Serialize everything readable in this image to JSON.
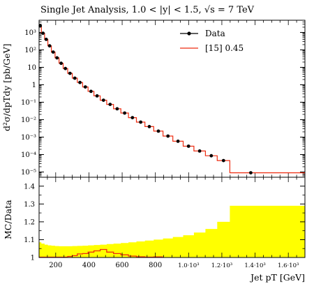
{
  "chart_data": [
    {
      "type": "line",
      "panel": "main",
      "title": "Single Jet Analysis, 1.0 < |y| < 1.5, √s = 7 TeV",
      "ylabel": "d²σ/dpTdy [pb/GeV]",
      "yscale": "log",
      "ylim": [
        5e-06,
        5000
      ],
      "xlim": [
        100,
        1700
      ],
      "ytick_labels": [
        "10³",
        "10²",
        "10",
        "1",
        "10⁻¹",
        "10⁻²",
        "10⁻³",
        "10⁻⁴",
        "10⁻⁵"
      ],
      "ytick_values": [
        1000,
        100,
        10,
        1,
        0.1,
        0.01,
        0.001,
        0.0001,
        1e-05
      ],
      "legend": {
        "placement": "top-right",
        "entries": [
          "Data",
          "[15] 0.45"
        ]
      },
      "bin_edges": [
        100,
        114,
        133,
        153,
        174,
        196,
        220,
        245,
        272,
        300,
        330,
        362,
        395,
        430,
        468,
        507,
        548,
        592,
        638,
        686,
        737,
        790,
        846,
        905,
        967,
        1032,
        1101,
        1172,
        1248,
        1500,
        1700
      ],
      "series": [
        {
          "name": "Data",
          "style": "points",
          "color": "#000000",
          "x": [
            107,
            123.5,
            143,
            163.5,
            185,
            208,
            232.5,
            258.5,
            286,
            315,
            346,
            378.5,
            412.5,
            449,
            487.5,
            527.5,
            570,
            615,
            662,
            711.5,
            763.5,
            818,
            875.5,
            936,
            999.5,
            1066.5,
            1136.5,
            1210,
            1374
          ],
          "y": [
            2400,
            900,
            400,
            170,
            75,
            35,
            17,
            8.5,
            4.5,
            2.4,
            1.35,
            0.75,
            0.42,
            0.23,
            0.13,
            0.075,
            0.042,
            0.024,
            0.013,
            0.0072,
            0.004,
            0.0022,
            0.00115,
            0.00058,
            0.0003,
            0.00016,
            8.5e-05,
            4.5e-05,
            9e-06
          ]
        },
        {
          "name": "[15] 0.45",
          "style": "histogram",
          "color": "#ee2c10",
          "y": [
            2400,
            900,
            400,
            170,
            75,
            35,
            17,
            8.5,
            4.5,
            2.4,
            1.35,
            0.75,
            0.42,
            0.23,
            0.13,
            0.075,
            0.042,
            0.024,
            0.013,
            0.0072,
            0.004,
            0.0022,
            0.00115,
            0.00058,
            0.0003,
            0.00016,
            8.5e-05,
            4.5e-05,
            9e-06,
            9e-06
          ]
        }
      ]
    },
    {
      "type": "area",
      "panel": "ratio",
      "ylabel": "MC/Data",
      "xlabel": "Jet pT [GeV]",
      "ylim": [
        1.0,
        1.45
      ],
      "xlim": [
        100,
        1700
      ],
      "ytick_labels": [
        "1",
        "1.1",
        "1.2",
        "1.3",
        "1.4"
      ],
      "ytick_values": [
        1.0,
        1.1,
        1.2,
        1.3,
        1.4
      ],
      "xtick_labels": [
        "200",
        "400",
        "600",
        "800",
        "1.0·10³",
        "1.2·10³",
        "1.4·10³",
        "1.6·10³"
      ],
      "xtick_values": [
        200,
        400,
        600,
        800,
        1000,
        1200,
        1400,
        1600
      ],
      "bin_edges": [
        100,
        114,
        133,
        153,
        174,
        196,
        220,
        245,
        272,
        300,
        330,
        362,
        395,
        430,
        468,
        507,
        548,
        592,
        638,
        686,
        737,
        790,
        846,
        905,
        967,
        1032,
        1101,
        1172,
        1248,
        1500,
        1700
      ],
      "series": [
        {
          "name": "band",
          "color": "#ffff00",
          "upper": [
            1.085,
            1.078,
            1.072,
            1.068,
            1.066,
            1.064,
            1.063,
            1.063,
            1.063,
            1.064,
            1.065,
            1.066,
            1.068,
            1.07,
            1.072,
            1.075,
            1.078,
            1.081,
            1.085,
            1.09,
            1.095,
            1.1,
            1.107,
            1.115,
            1.125,
            1.14,
            1.16,
            1.2,
            1.29,
            1.29
          ],
          "lower": [
            1.0,
            1.0,
            1.0,
            1.0,
            1.0,
            1.0,
            1.0,
            1.0,
            1.0,
            1.0,
            1.0,
            1.0,
            1.0,
            1.0,
            1.0,
            1.0,
            1.0,
            1.0,
            1.0,
            1.0,
            1.0,
            1.0,
            1.0,
            1.0,
            1.0,
            1.0,
            1.0,
            1.0,
            1.0,
            1.0
          ]
        },
        {
          "name": "[15] 0.45",
          "color": "#ee2c10",
          "x_range": [
            100,
            846
          ],
          "values": [
            1.0,
            1.0,
            1.0,
            1.0,
            1.0,
            1.0,
            1.0,
            1.002,
            1.006,
            1.01,
            1.02,
            1.022,
            1.03,
            1.037,
            1.045,
            1.03,
            1.022,
            1.015,
            1.008,
            1.004,
            1.002,
            1.003
          ]
        }
      ]
    }
  ]
}
